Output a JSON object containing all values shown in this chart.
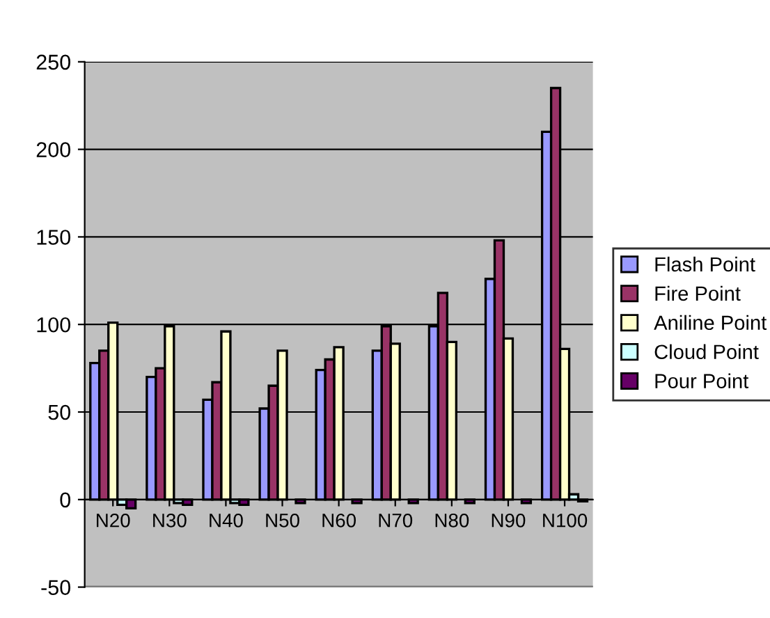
{
  "chart_data": {
    "type": "bar",
    "categories": [
      "N20",
      "N30",
      "N40",
      "N50",
      "N60",
      "N70",
      "N80",
      "N90",
      "N100"
    ],
    "series": [
      {
        "name": "Flash Point",
        "color": "#9999ff",
        "values": [
          78,
          70,
          57,
          52,
          74,
          85,
          99,
          126,
          210
        ]
      },
      {
        "name": "Fire Point",
        "color": "#993366",
        "values": [
          85,
          75,
          67,
          65,
          80,
          99,
          118,
          148,
          235
        ]
      },
      {
        "name": "Aniline Point",
        "color": "#ffffcc",
        "values": [
          101,
          99,
          96,
          85,
          87,
          89,
          90,
          92,
          86
        ]
      },
      {
        "name": "Cloud Point",
        "color": "#ccffff",
        "values": [
          -3,
          -2,
          -2,
          null,
          0,
          null,
          0,
          null,
          3
        ]
      },
      {
        "name": "Pour Point",
        "color": "#660066",
        "values": [
          -5,
          -3,
          -3,
          -2,
          -2,
          -2,
          -2,
          -2,
          -1
        ]
      }
    ],
    "ylim": [
      -50,
      250
    ],
    "yticks": [
      -50,
      0,
      50,
      100,
      150,
      200,
      250
    ],
    "grid": "y",
    "legend": "right"
  }
}
